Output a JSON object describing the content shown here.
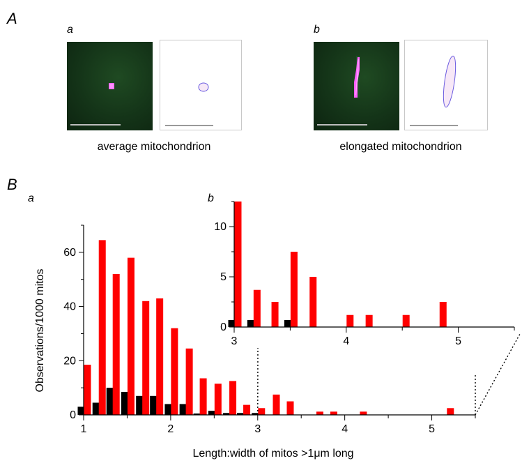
{
  "panel_A": {
    "label": "A",
    "sub_a": {
      "label": "a",
      "caption": "average mitochondrion"
    },
    "sub_b": {
      "label": "b",
      "caption": "elongated mitochondrion"
    }
  },
  "panel_B": {
    "label": "B",
    "sub_a_label": "a",
    "sub_b_label": "b"
  },
  "colors": {
    "red_series": "#ff0000",
    "black_series": "#000000"
  },
  "chart_data": [
    {
      "type": "bar",
      "title": "",
      "xlabel": "Length:width of mitos >1μm long",
      "ylabel": "Observations/1000 mitos",
      "xlim": [
        1,
        5.5
      ],
      "ylim": [
        0,
        70
      ],
      "xticks": [
        1,
        2,
        3,
        4,
        5
      ],
      "yticks": [
        0,
        20,
        40,
        60
      ],
      "x": [
        1.0,
        1.17,
        1.33,
        1.5,
        1.67,
        1.83,
        2.0,
        2.17,
        2.33,
        2.5,
        2.67,
        2.83,
        3.0,
        3.17,
        3.33,
        3.5,
        3.67,
        3.83,
        4.0,
        4.17,
        4.33,
        4.5,
        4.67,
        4.83,
        5.0,
        5.17,
        5.33
      ],
      "series": [
        {
          "color": "#000000",
          "values": [
            3,
            4.5,
            10,
            8.5,
            7,
            7,
            4,
            4,
            0.5,
            1.5,
            0.7,
            0.7,
            0.7,
            0,
            0,
            0,
            0,
            0,
            0,
            0,
            0,
            0,
            0,
            0,
            0,
            0,
            0
          ]
        },
        {
          "color": "#ff0000",
          "values": [
            18.5,
            64.5,
            52,
            58,
            42,
            43,
            32,
            24.5,
            13.5,
            11.5,
            12.5,
            3.7,
            2.5,
            7.5,
            5,
            0,
            1.2,
            1.2,
            0,
            1.2,
            0,
            0,
            0,
            0,
            0,
            2.5,
            0
          ]
        }
      ]
    },
    {
      "type": "bar",
      "title": "",
      "xlabel": "",
      "ylabel": "",
      "xlim": [
        3,
        5.5
      ],
      "ylim": [
        0,
        12.5
      ],
      "xticks": [
        3,
        4,
        5
      ],
      "yticks": [
        0,
        5,
        10
      ],
      "x": [
        3.0,
        3.17,
        3.33,
        3.5,
        3.67,
        3.83,
        4.0,
        4.17,
        4.33,
        4.5,
        4.67,
        4.83,
        5.0,
        5.17,
        5.33
      ],
      "series": [
        {
          "color": "#000000",
          "values": [
            0.7,
            0.7,
            0,
            0.7,
            0,
            0,
            0,
            0,
            0,
            0,
            0,
            0,
            0,
            0,
            0
          ]
        },
        {
          "color": "#ff0000",
          "values": [
            12.5,
            3.7,
            2.5,
            7.5,
            5,
            0,
            1.2,
            1.2,
            0,
            1.2,
            0,
            2.5,
            0,
            0,
            0
          ]
        }
      ]
    }
  ]
}
